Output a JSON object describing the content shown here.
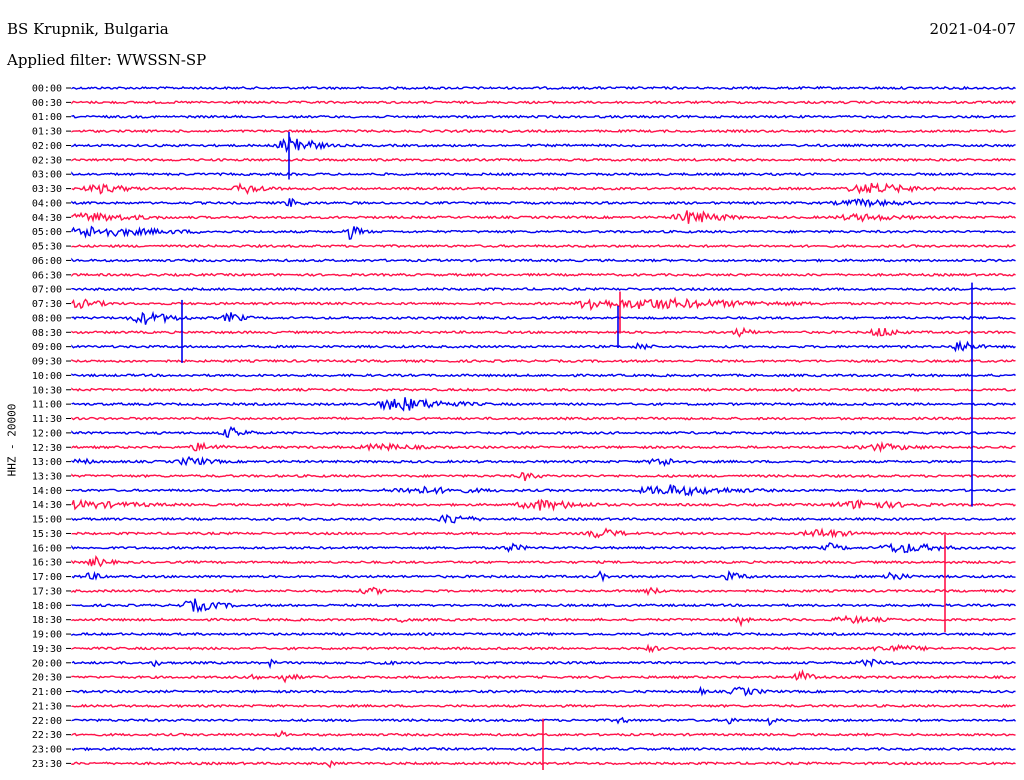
{
  "header": {
    "station": "BS Krupnik, Bulgaria",
    "filter": "Applied filter: WWSSN-SP",
    "date": "2021-04-07"
  },
  "chart_data": {
    "type": "line",
    "ylabel": "HHZ - 20000",
    "series_colors": [
      "#0000ee",
      "#ff1149"
    ],
    "rows": [
      "00:00",
      "00:30",
      "01:00",
      "01:30",
      "02:00",
      "02:30",
      "03:00",
      "03:30",
      "04:00",
      "04:30",
      "05:00",
      "05:30",
      "06:00",
      "06:30",
      "07:00",
      "07:30",
      "08:00",
      "08:30",
      "09:00",
      "09:30",
      "10:00",
      "10:30",
      "11:00",
      "11:30",
      "12:00",
      "12:30",
      "13:00",
      "13:30",
      "14:00",
      "14:30",
      "15:00",
      "15:30",
      "16:00",
      "16:30",
      "17:00",
      "17:30",
      "18:00",
      "18:30",
      "19:00",
      "19:30",
      "20:00",
      "20:30",
      "21:00",
      "21:30",
      "22:00",
      "22:30",
      "23:00",
      "23:30"
    ]
  }
}
